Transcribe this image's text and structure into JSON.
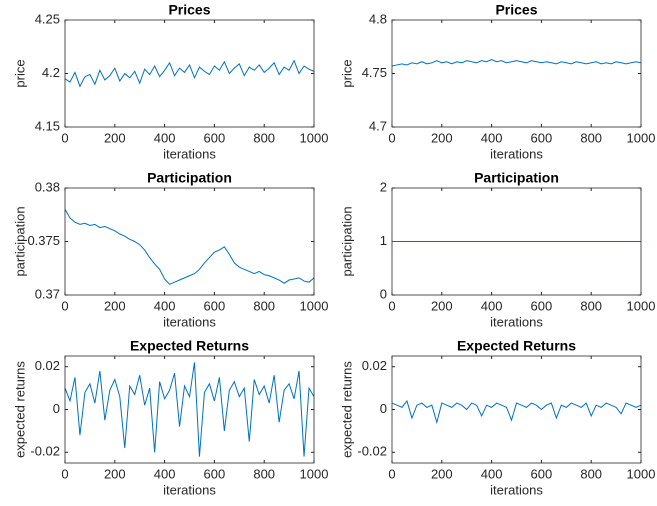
{
  "chart_data": [
    {
      "type": "line",
      "title": "Prices",
      "xlabel": "iterations",
      "ylabel": "price",
      "color": "#0072bd",
      "xlim": [
        0,
        1000
      ],
      "xticks": [
        0,
        200,
        400,
        600,
        800,
        1000
      ],
      "ylim": [
        4.15,
        4.25
      ],
      "yticks": [
        4.15,
        4.2,
        4.25
      ],
      "x": [
        0,
        20,
        40,
        60,
        80,
        100,
        120,
        140,
        160,
        180,
        200,
        220,
        240,
        260,
        280,
        300,
        320,
        340,
        360,
        380,
        400,
        420,
        440,
        460,
        480,
        500,
        520,
        540,
        560,
        580,
        600,
        620,
        640,
        660,
        680,
        700,
        720,
        740,
        760,
        780,
        800,
        820,
        840,
        860,
        880,
        900,
        920,
        940,
        960,
        980,
        1000
      ],
      "values": [
        4.195,
        4.192,
        4.201,
        4.188,
        4.197,
        4.199,
        4.19,
        4.203,
        4.194,
        4.198,
        4.205,
        4.193,
        4.2,
        4.196,
        4.202,
        4.191,
        4.204,
        4.199,
        4.207,
        4.197,
        4.203,
        4.21,
        4.198,
        4.205,
        4.201,
        4.208,
        4.196,
        4.206,
        4.202,
        4.199,
        4.207,
        4.203,
        4.211,
        4.2,
        4.205,
        4.209,
        4.198,
        4.206,
        4.203,
        4.208,
        4.201,
        4.205,
        4.21,
        4.199,
        4.206,
        4.203,
        4.212,
        4.2,
        4.207,
        4.204,
        4.202
      ]
    },
    {
      "type": "line",
      "title": "Prices",
      "xlabel": "iterations",
      "ylabel": "price",
      "color": "#0072bd",
      "xlim": [
        0,
        1000
      ],
      "xticks": [
        0,
        200,
        400,
        600,
        800,
        1000
      ],
      "ylim": [
        4.7,
        4.8
      ],
      "yticks": [
        4.7,
        4.75,
        4.8
      ],
      "x": [
        0,
        20,
        40,
        60,
        80,
        100,
        120,
        140,
        160,
        180,
        200,
        220,
        240,
        260,
        280,
        300,
        320,
        340,
        360,
        380,
        400,
        420,
        440,
        460,
        480,
        500,
        520,
        540,
        560,
        580,
        600,
        620,
        640,
        660,
        680,
        700,
        720,
        740,
        760,
        780,
        800,
        820,
        840,
        860,
        880,
        900,
        920,
        940,
        960,
        980,
        1000
      ],
      "values": [
        4.757,
        4.758,
        4.759,
        4.758,
        4.76,
        4.759,
        4.761,
        4.759,
        4.76,
        4.762,
        4.76,
        4.761,
        4.759,
        4.761,
        4.76,
        4.762,
        4.761,
        4.76,
        4.762,
        4.761,
        4.763,
        4.761,
        4.762,
        4.76,
        4.761,
        4.762,
        4.761,
        4.76,
        4.762,
        4.761,
        4.76,
        4.761,
        4.76,
        4.759,
        4.761,
        4.76,
        4.759,
        4.761,
        4.76,
        4.759,
        4.76,
        4.761,
        4.759,
        4.76,
        4.759,
        4.761,
        4.76,
        4.759,
        4.76,
        4.761,
        4.76
      ]
    },
    {
      "type": "line",
      "title": "Participation",
      "xlabel": "iterations",
      "ylabel": "participation",
      "color": "#0072bd",
      "xlim": [
        0,
        1000
      ],
      "xticks": [
        0,
        200,
        400,
        600,
        800,
        1000
      ],
      "ylim": [
        0.37,
        0.38
      ],
      "yticks": [
        0.37,
        0.375,
        0.38
      ],
      "x": [
        0,
        20,
        40,
        60,
        80,
        100,
        120,
        140,
        160,
        180,
        200,
        220,
        240,
        260,
        280,
        300,
        320,
        340,
        360,
        380,
        400,
        420,
        440,
        460,
        480,
        500,
        520,
        540,
        560,
        580,
        600,
        620,
        640,
        660,
        680,
        700,
        720,
        740,
        760,
        780,
        800,
        820,
        840,
        860,
        880,
        900,
        920,
        940,
        960,
        980,
        1000
      ],
      "values": [
        0.378,
        0.3772,
        0.3768,
        0.3766,
        0.3767,
        0.3765,
        0.3766,
        0.3763,
        0.3764,
        0.3762,
        0.376,
        0.3757,
        0.3755,
        0.3752,
        0.375,
        0.3747,
        0.3742,
        0.3735,
        0.3729,
        0.3724,
        0.3715,
        0.371,
        0.3712,
        0.3714,
        0.3716,
        0.3718,
        0.372,
        0.3724,
        0.373,
        0.3735,
        0.374,
        0.3742,
        0.3745,
        0.3738,
        0.373,
        0.3726,
        0.3724,
        0.3722,
        0.372,
        0.3722,
        0.3719,
        0.3718,
        0.3716,
        0.3714,
        0.3711,
        0.3714,
        0.3715,
        0.3716,
        0.3713,
        0.3712,
        0.3716
      ]
    },
    {
      "type": "line",
      "title": "Participation",
      "xlabel": "iterations",
      "ylabel": "participation",
      "color": "#0072bd",
      "xlim": [
        0,
        1000
      ],
      "xticks": [
        0,
        200,
        400,
        600,
        800,
        1000
      ],
      "ylim": [
        0,
        2
      ],
      "yticks": [
        0,
        1,
        2
      ],
      "x": [
        0,
        1000
      ],
      "values": [
        1,
        1
      ]
    },
    {
      "type": "line",
      "title": "Expected Returns",
      "xlabel": "iterations",
      "ylabel": "expected returns",
      "color": "#0072bd",
      "xlim": [
        0,
        1000
      ],
      "xticks": [
        0,
        200,
        400,
        600,
        800,
        1000
      ],
      "ylim": [
        -0.025,
        0.025
      ],
      "yticks": [
        -0.02,
        0,
        0.02
      ],
      "x": [
        0,
        20,
        40,
        60,
        80,
        100,
        120,
        140,
        160,
        180,
        200,
        220,
        240,
        260,
        280,
        300,
        320,
        340,
        360,
        380,
        400,
        420,
        440,
        460,
        480,
        500,
        520,
        540,
        560,
        580,
        600,
        620,
        640,
        660,
        680,
        700,
        720,
        740,
        760,
        780,
        800,
        820,
        840,
        860,
        880,
        900,
        920,
        940,
        960,
        980,
        1000
      ],
      "values": [
        0.01,
        0.004,
        0.015,
        -0.012,
        0.008,
        0.012,
        0.003,
        0.018,
        -0.005,
        0.009,
        0.014,
        0.006,
        -0.018,
        0.011,
        0.007,
        0.016,
        0.002,
        0.01,
        -0.02,
        0.013,
        0.005,
        0.009,
        0.017,
        -0.008,
        0.011,
        0.006,
        0.022,
        -0.022,
        0.008,
        0.012,
        0.004,
        0.015,
        -0.01,
        0.009,
        0.013,
        0.006,
        0.01,
        -0.015,
        0.014,
        0.007,
        0.011,
        0.003,
        0.016,
        -0.006,
        0.009,
        0.012,
        0.005,
        0.018,
        -0.022,
        0.01,
        0.006
      ]
    },
    {
      "type": "line",
      "title": "Expected Returns",
      "xlabel": "iterations",
      "ylabel": "expected returns",
      "color": "#0072bd",
      "xlim": [
        0,
        1000
      ],
      "xticks": [
        0,
        200,
        400,
        600,
        800,
        1000
      ],
      "ylim": [
        -0.025,
        0.025
      ],
      "yticks": [
        -0.02,
        0,
        0.02
      ],
      "x": [
        0,
        20,
        40,
        60,
        80,
        100,
        120,
        140,
        160,
        180,
        200,
        220,
        240,
        260,
        280,
        300,
        320,
        340,
        360,
        380,
        400,
        420,
        440,
        460,
        480,
        500,
        520,
        540,
        560,
        580,
        600,
        620,
        640,
        660,
        680,
        700,
        720,
        740,
        760,
        780,
        800,
        820,
        840,
        860,
        880,
        900,
        920,
        940,
        960,
        980,
        1000
      ],
      "values": [
        0.003,
        0.002,
        0.001,
        0.004,
        -0.004,
        0.002,
        0.003,
        0.001,
        0.002,
        -0.006,
        0.003,
        0.002,
        0.001,
        0.003,
        0.002,
        0.0,
        0.003,
        0.002,
        -0.003,
        0.002,
        0.001,
        0.003,
        0.002,
        0.001,
        -0.005,
        0.003,
        0.002,
        0.001,
        0.003,
        0.002,
        0.0,
        0.002,
        0.003,
        -0.004,
        0.002,
        0.001,
        0.003,
        0.002,
        0.001,
        0.003,
        -0.003,
        0.002,
        0.001,
        0.003,
        0.002,
        0.001,
        -0.002,
        0.003,
        0.002,
        0.001,
        0.002
      ]
    }
  ]
}
